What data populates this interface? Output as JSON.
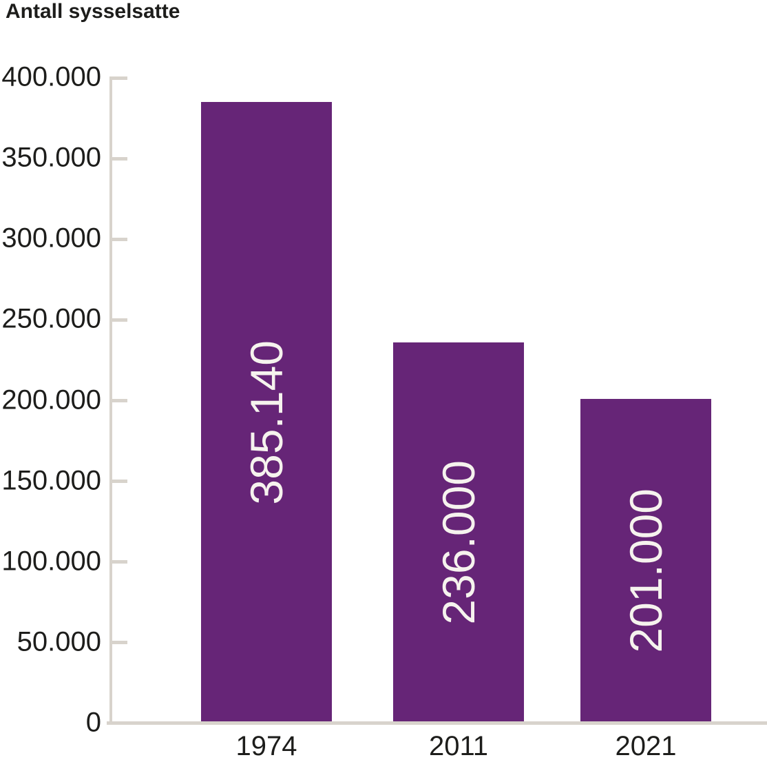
{
  "chart_data": {
    "type": "bar",
    "title": "Antall sysselsatte",
    "categories": [
      "1974",
      "2011",
      "2021"
    ],
    "values": [
      385140,
      236000,
      201000
    ],
    "bar_value_labels": [
      "385.140",
      "236.000",
      "201.000"
    ],
    "ylabel": "Antall sysselsatte",
    "xlabel": "",
    "ylim": [
      0,
      400000
    ],
    "ytick_step": 50000,
    "ytick_labels": [
      "0",
      "50.000",
      "100.000",
      "150.000",
      "200.000",
      "250.000",
      "300.000",
      "350.000",
      "400.000"
    ],
    "grid": false,
    "legend": "none",
    "bar_color": "#662577",
    "axis_color": "#d8d3cc",
    "text_color": "#1d1d1b",
    "bar_label_color": "#f6f3ee"
  }
}
